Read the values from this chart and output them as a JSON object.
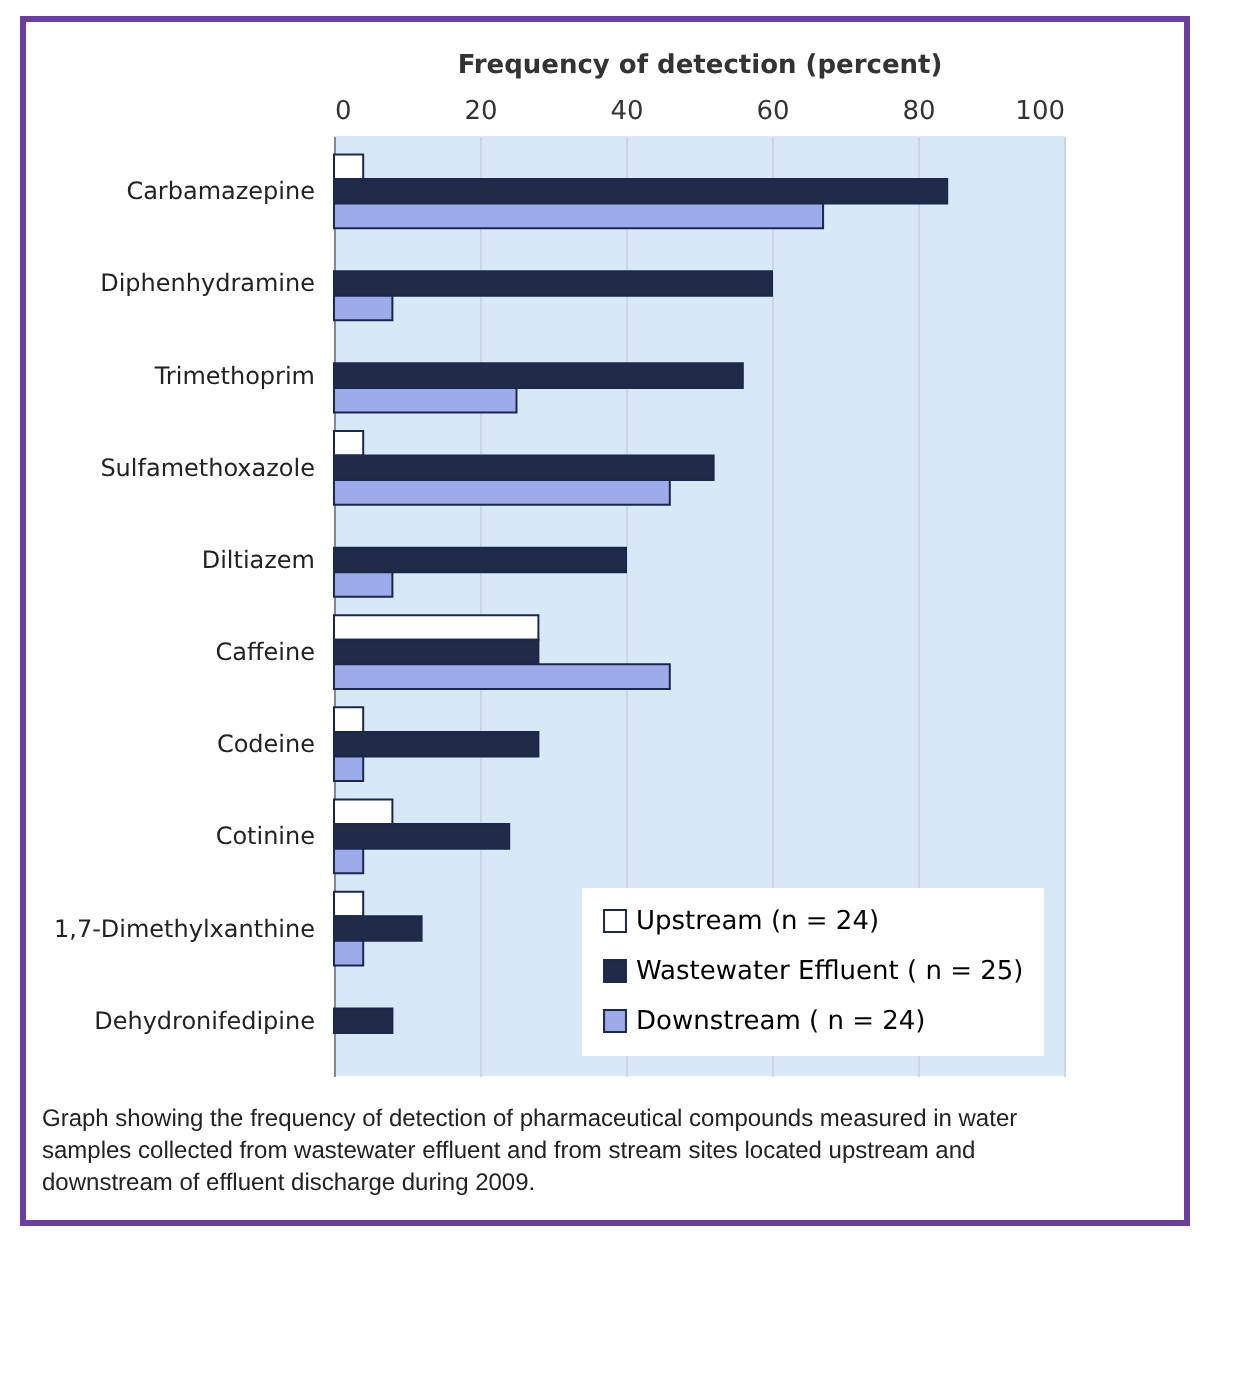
{
  "chart_data": {
    "type": "bar",
    "orientation": "horizontal",
    "xlabel": "Frequency of detection (percent)",
    "categories": [
      "Carbamazepine",
      "Diphenhydramine",
      "Trimethoprim",
      "Sulfamethoxazole",
      "Diltiazem",
      "Caffeine",
      "Codeine",
      "Cotinine",
      "1,7-Dimethylxanthine",
      "Dehydronifedipine"
    ],
    "series": [
      {
        "name": "Upstream (n = 24)",
        "color": "#ffffff",
        "values": [
          4,
          null,
          null,
          4,
          null,
          28,
          4,
          8,
          4,
          null
        ]
      },
      {
        "name": "Wastewater Effluent ( n = 25)",
        "color": "#1f2b47",
        "values": [
          84,
          60,
          56,
          52,
          40,
          28,
          28,
          24,
          12,
          8
        ]
      },
      {
        "name": "Downstream ( n = 24)",
        "color": "#9cabea",
        "values": [
          67,
          8,
          25,
          46,
          8,
          46,
          4,
          4,
          4,
          null
        ]
      }
    ],
    "xlim": [
      0,
      100
    ],
    "xticks": [
      0,
      20,
      40,
      60,
      80,
      100
    ],
    "grid": "x",
    "legend": "bottom right",
    "annotations": [
      "Graph showing the frequency of detection of pharmaceutical compounds measured in water samples collected from wastewater effluent and from stream sites located upstream and downstream of effluent discharge during 2009."
    ]
  }
}
